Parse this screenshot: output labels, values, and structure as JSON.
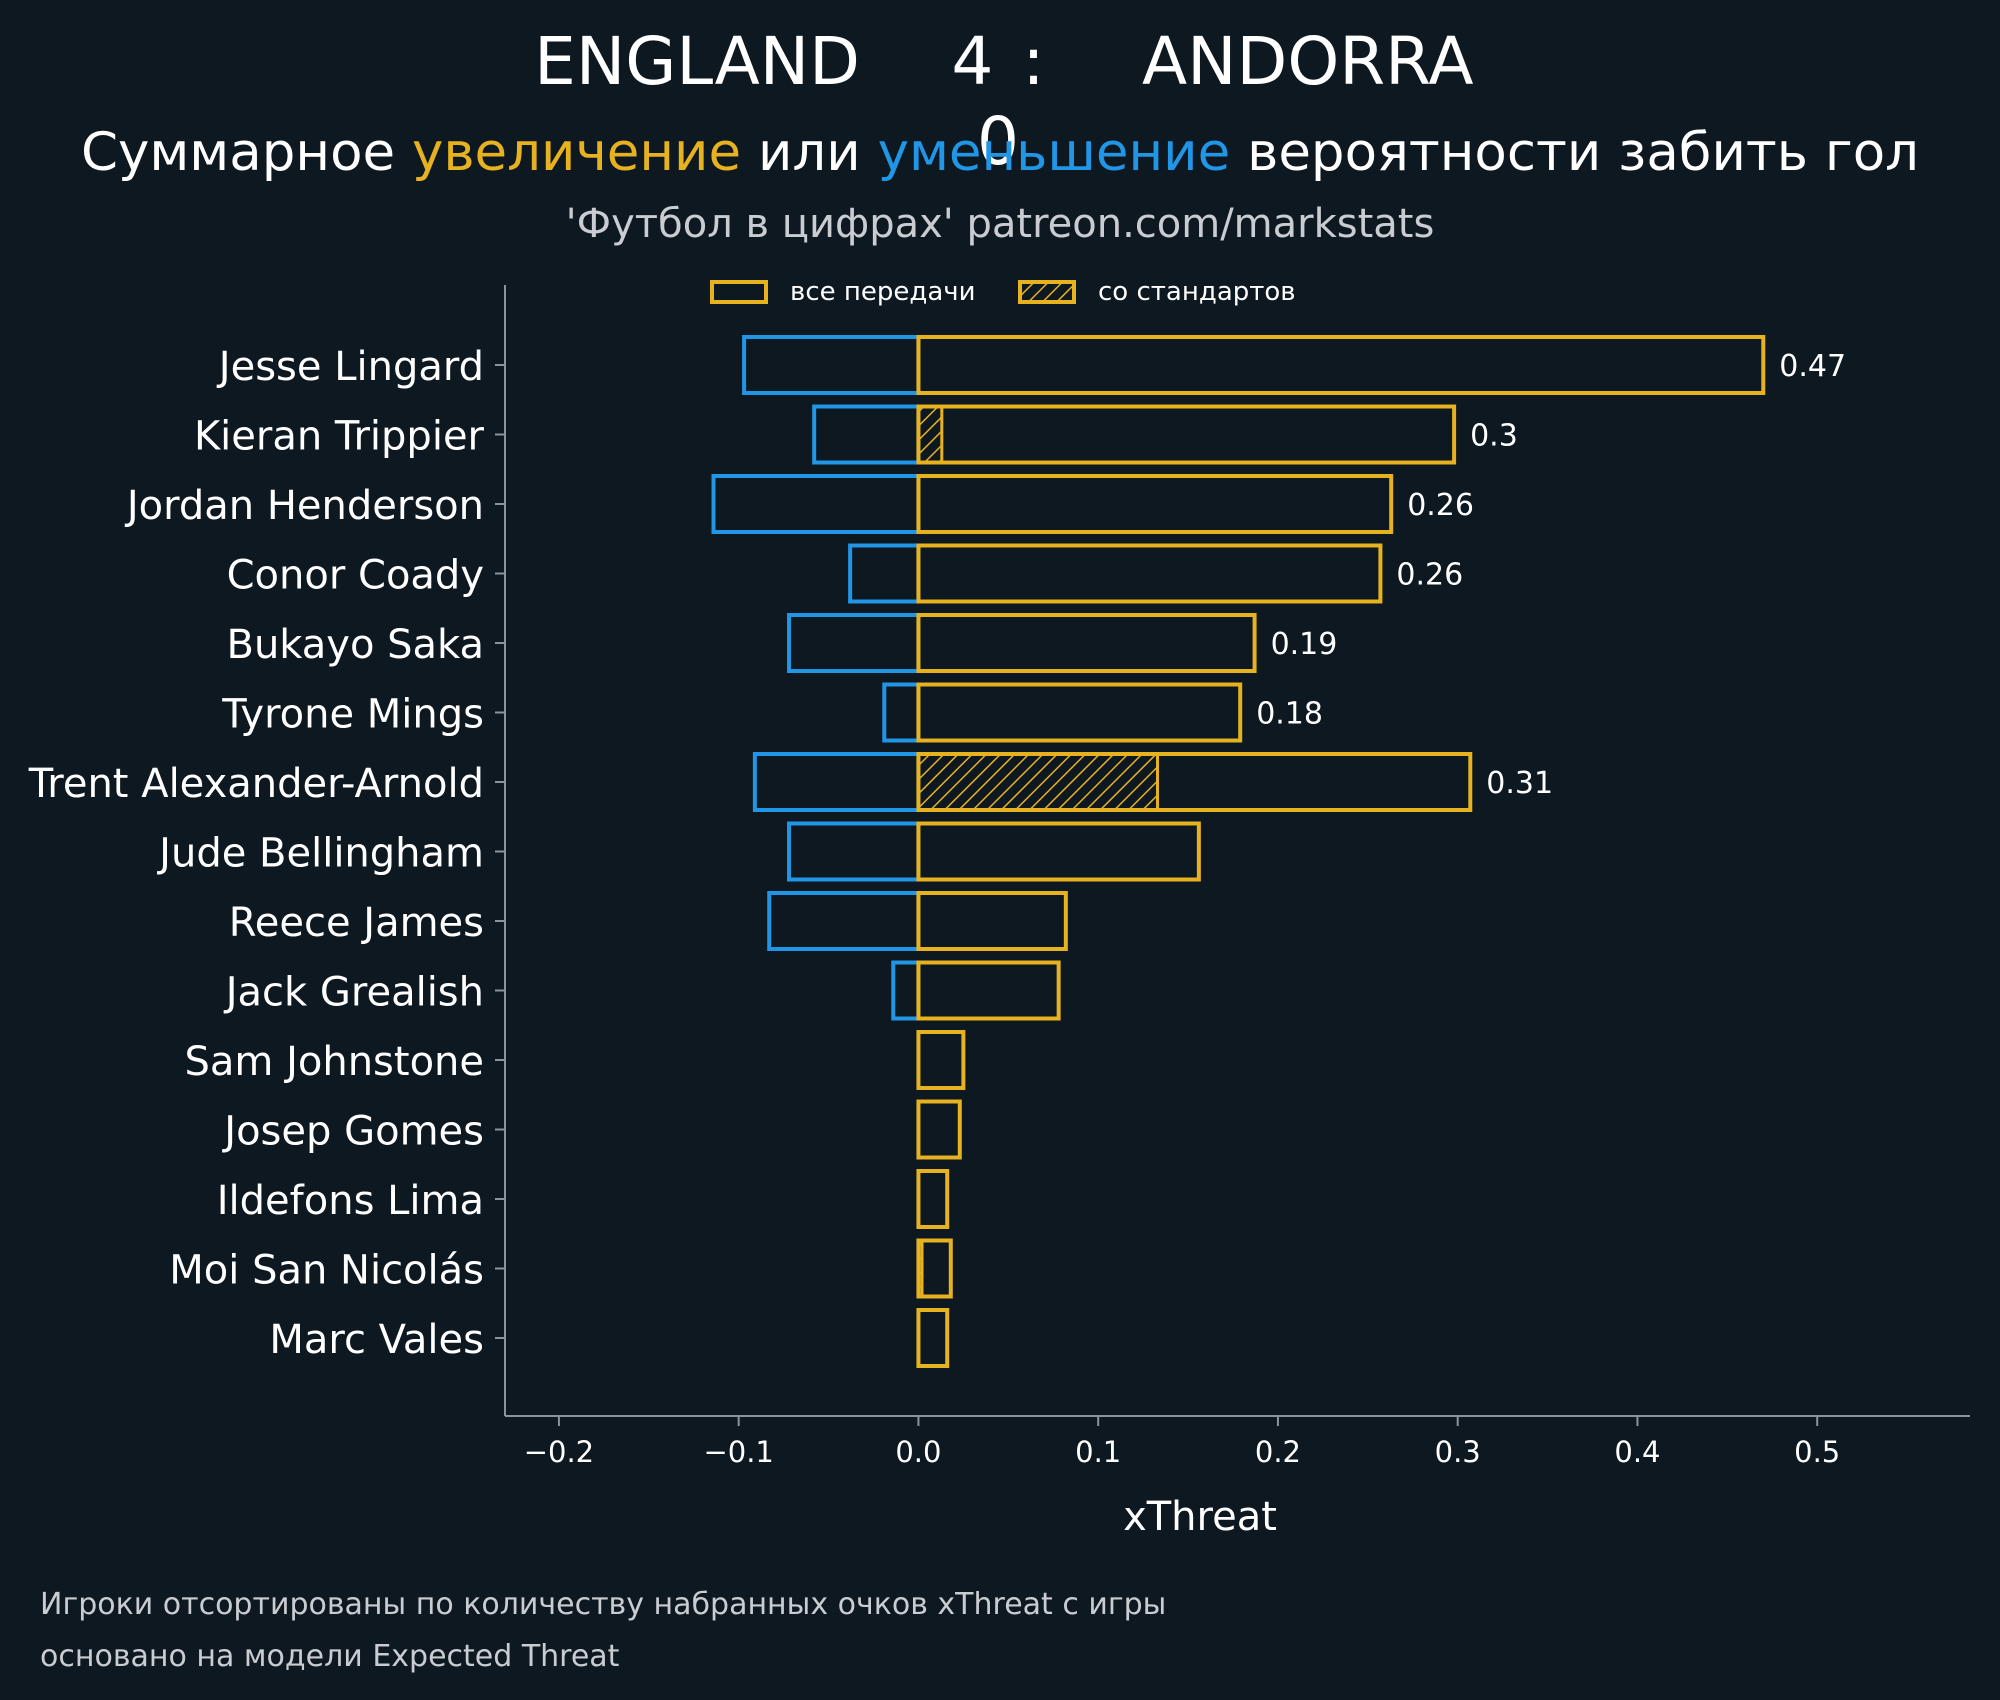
{
  "header": {
    "home_team": "ENGLAND",
    "score": "4 : 0",
    "away_team": "ANDORRA",
    "subtitle_prefix": "Суммарное ",
    "subtitle_increase": "увеличение",
    "subtitle_middle": " или ",
    "subtitle_decrease": "уменьшение",
    "subtitle_suffix": " вероятности забить гол",
    "credit": "'Футбол в цифрах' patreon.com/markstats"
  },
  "legend": {
    "all_passes": "все передачи",
    "set_pieces": "со стандартов"
  },
  "footer": {
    "line1": "Игроки отсортированы по количеству набранных очков xThreat с игры",
    "line2": "основано на модели Expected Threat"
  },
  "colors": {
    "background": "#0e1821",
    "increase": "#e6b220",
    "decrease": "#2196e6",
    "axis": "#8a949c",
    "text": "#ffffff"
  },
  "chart_data": {
    "type": "bar",
    "orientation": "horizontal",
    "xlabel": "xThreat",
    "ylabel": "",
    "xlim": [
      -0.23,
      0.585
    ],
    "xticks": [
      -0.2,
      -0.1,
      0.0,
      0.1,
      0.2,
      0.3,
      0.4,
      0.5
    ],
    "xtick_labels": [
      "−0.2",
      "−0.1",
      "0.0",
      "0.1",
      "0.2",
      "0.3",
      "0.4",
      "0.5"
    ],
    "grid": false,
    "legend_position": "top",
    "categories": [
      "Jesse Lingard",
      "Kieran Trippier",
      "Jordan Henderson",
      "Conor Coady",
      "Bukayo Saka",
      "Tyrone Mings",
      "Trent Alexander-Arnold",
      "Jude Bellingham",
      "Reece James",
      "Jack Grealish",
      "Sam Johnstone",
      "Josep Gomes",
      "Ildefons Lima",
      "Moi San Nicolás",
      "Marc Vales"
    ],
    "series": [
      {
        "name": "все передачи",
        "values": [
          0.47,
          0.298,
          0.263,
          0.257,
          0.187,
          0.179,
          0.307,
          0.156,
          0.082,
          0.078,
          0.025,
          0.023,
          0.016,
          0.018,
          0.016
        ]
      },
      {
        "name": "со стандартов",
        "values": [
          0,
          0.013,
          0,
          0,
          0,
          0,
          0.133,
          0,
          0,
          0,
          0,
          0,
          0,
          0.002,
          0
        ]
      },
      {
        "values": [
          -0.097,
          -0.058,
          -0.114,
          -0.038,
          -0.072,
          -0.019,
          -0.091,
          -0.072,
          -0.083,
          -0.014,
          0,
          0,
          0,
          0,
          0
        ]
      }
    ],
    "data_labels": [
      "0.47",
      "0.3",
      "0.26",
      "0.26",
      "0.19",
      "0.18",
      "0.31",
      "",
      "",
      "",
      "",
      "",
      "",
      "",
      ""
    ]
  }
}
